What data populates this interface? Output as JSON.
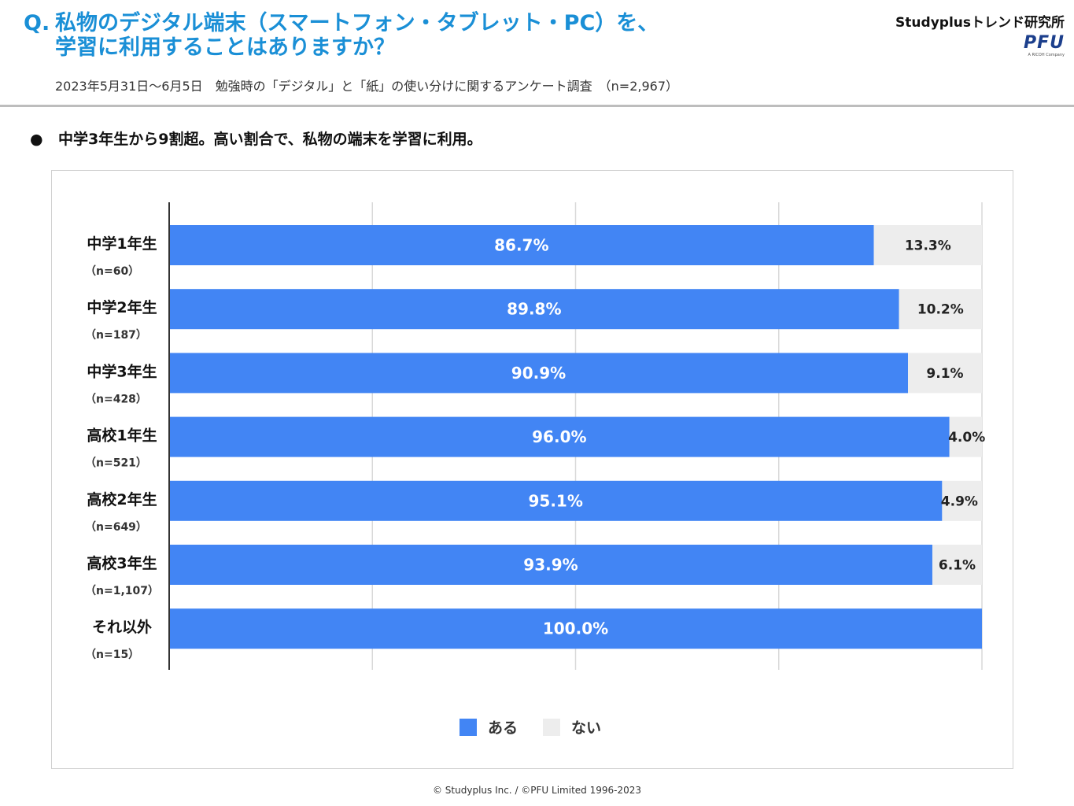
{
  "header": {
    "question_prefix": "Q.",
    "question_line1": "私物のデジタル端末（スマートフォン・タブレット・PC）を、",
    "question_line2": "学習に利用することはありますか？",
    "subtitle": "2023年5月31日～6月5日　勉強時の「デジタル」と「紙」の使い分けに関するアンケート調査　（n=2,967）",
    "brand": "Studyplusトレンド研究所",
    "logo_text": "PFU",
    "logo_sub": "A RICOH Company"
  },
  "bullet": {
    "symbol": "●",
    "text": "中学3年生から9割超。高い割合で、私物の端末を学習に利用。"
  },
  "colors": {
    "yes": "#4285f4",
    "no": "#ededed",
    "title": "#1a8fd6",
    "grid": "#d9d9d9"
  },
  "chart_data": {
    "type": "bar",
    "orientation": "horizontal",
    "stacked": true,
    "categories": [
      "中学1年生",
      "中学2年生",
      "中学3年生",
      "高校1年生",
      "高校2年生",
      "高校3年生",
      "それ以外"
    ],
    "category_n": [
      "（n=60）",
      "（n=187）",
      "（n=428）",
      "（n=521）",
      "（n=649）",
      "（n=1,107）",
      "（n=15）"
    ],
    "series": [
      {
        "name": "ある",
        "values": [
          86.7,
          89.8,
          90.9,
          96.0,
          95.1,
          93.9,
          100.0
        ],
        "labels": [
          "86.7%",
          "89.8%",
          "90.9%",
          "96.0%",
          "95.1%",
          "93.9%",
          "100.0%"
        ]
      },
      {
        "name": "ない",
        "values": [
          13.3,
          10.2,
          9.1,
          4.0,
          4.9,
          6.1,
          0.0
        ],
        "labels": [
          "13.3%",
          "10.2%",
          "9.1%",
          "4.0%",
          "4.9%",
          "6.1%",
          ""
        ]
      }
    ],
    "xlim": [
      0,
      100
    ],
    "grid": true,
    "legend_position": "bottom"
  },
  "footer": "© Studyplus Inc. /  ©PFU Limited 1996-2023"
}
